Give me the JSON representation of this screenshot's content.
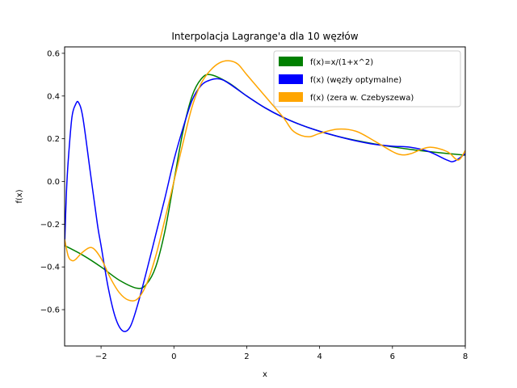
{
  "chart_data": {
    "type": "line",
    "title": "Interpolacja Lagrange'a dla 10 węzłów",
    "xlabel": "x",
    "ylabel": "f(x)",
    "xlim": [
      -3,
      8
    ],
    "ylim": [
      -0.77,
      0.63
    ],
    "x_ticks": [
      -2,
      0,
      2,
      4,
      6,
      8
    ],
    "x_tick_labels": [
      "−2",
      "0",
      "2",
      "4",
      "6",
      "8"
    ],
    "y_ticks": [
      -0.6,
      -0.4,
      -0.2,
      0.0,
      0.2,
      0.4,
      0.6
    ],
    "y_tick_labels": [
      "−0.6",
      "−0.4",
      "−0.2",
      "0.0",
      "0.2",
      "0.4",
      "0.6"
    ],
    "grid": false,
    "legend_position": "top-right",
    "series": [
      {
        "name": "f(x)=x/(1+x^2)",
        "color": "#008000",
        "points": [
          [
            -3,
            -0.3
          ],
          [
            -2.5,
            -0.345
          ],
          [
            -2,
            -0.4
          ],
          [
            -1.5,
            -0.462
          ],
          [
            -1,
            -0.5
          ],
          [
            -0.75,
            -0.48
          ],
          [
            -0.5,
            -0.4
          ],
          [
            -0.25,
            -0.235
          ],
          [
            0,
            0
          ],
          [
            0.25,
            0.235
          ],
          [
            0.5,
            0.4
          ],
          [
            0.75,
            0.48
          ],
          [
            1,
            0.5
          ],
          [
            1.5,
            0.462
          ],
          [
            2,
            0.4
          ],
          [
            2.5,
            0.345
          ],
          [
            3,
            0.3
          ],
          [
            3.5,
            0.264
          ],
          [
            4,
            0.235
          ],
          [
            4.5,
            0.211
          ],
          [
            5,
            0.192
          ],
          [
            5.5,
            0.176
          ],
          [
            6,
            0.162
          ],
          [
            6.5,
            0.15
          ],
          [
            7,
            0.14
          ],
          [
            7.5,
            0.131
          ],
          [
            8,
            0.123
          ]
        ]
      },
      {
        "name": "f(x) (węzły optymalne)",
        "color": "#0000ff",
        "points": [
          [
            -3,
            -0.3
          ],
          [
            -2.95,
            -0.05
          ],
          [
            -2.9,
            0.1
          ],
          [
            -2.8,
            0.3
          ],
          [
            -2.7,
            0.36
          ],
          [
            -2.62,
            0.37
          ],
          [
            -2.5,
            0.3
          ],
          [
            -2.3,
            0.05
          ],
          [
            -2.1,
            -0.2
          ],
          [
            -2,
            -0.3
          ],
          [
            -1.8,
            -0.5
          ],
          [
            -1.6,
            -0.64
          ],
          [
            -1.4,
            -0.7
          ],
          [
            -1.2,
            -0.68
          ],
          [
            -1,
            -0.58
          ],
          [
            -0.75,
            -0.42
          ],
          [
            -0.5,
            -0.25
          ],
          [
            -0.25,
            -0.08
          ],
          [
            0,
            0.1
          ],
          [
            0.25,
            0.25
          ],
          [
            0.5,
            0.38
          ],
          [
            0.75,
            0.45
          ],
          [
            1,
            0.475
          ],
          [
            1.25,
            0.48
          ],
          [
            1.5,
            0.46
          ],
          [
            2,
            0.4
          ],
          [
            2.5,
            0.345
          ],
          [
            3,
            0.3
          ],
          [
            3.5,
            0.264
          ],
          [
            4,
            0.235
          ],
          [
            4.5,
            0.211
          ],
          [
            5,
            0.19
          ],
          [
            5.5,
            0.174
          ],
          [
            6,
            0.165
          ],
          [
            6.5,
            0.16
          ],
          [
            7,
            0.14
          ],
          [
            7.5,
            0.1
          ],
          [
            7.7,
            0.095
          ],
          [
            8,
            0.13
          ]
        ]
      },
      {
        "name": "f(x) (zera w. Czebyszewa)",
        "color": "#ffa500",
        "points": [
          [
            -3,
            -0.27
          ],
          [
            -2.9,
            -0.35
          ],
          [
            -2.8,
            -0.37
          ],
          [
            -2.7,
            -0.365
          ],
          [
            -2.5,
            -0.33
          ],
          [
            -2.25,
            -0.31
          ],
          [
            -2,
            -0.36
          ],
          [
            -1.75,
            -0.45
          ],
          [
            -1.5,
            -0.52
          ],
          [
            -1.25,
            -0.555
          ],
          [
            -1,
            -0.55
          ],
          [
            -0.75,
            -0.48
          ],
          [
            -0.5,
            -0.35
          ],
          [
            -0.25,
            -0.18
          ],
          [
            0,
            0
          ],
          [
            0.25,
            0.18
          ],
          [
            0.5,
            0.35
          ],
          [
            0.75,
            0.46
          ],
          [
            1,
            0.52
          ],
          [
            1.25,
            0.555
          ],
          [
            1.5,
            0.565
          ],
          [
            1.75,
            0.55
          ],
          [
            2,
            0.5
          ],
          [
            2.5,
            0.4
          ],
          [
            3,
            0.3
          ],
          [
            3.25,
            0.24
          ],
          [
            3.5,
            0.215
          ],
          [
            3.75,
            0.21
          ],
          [
            4,
            0.225
          ],
          [
            4.5,
            0.245
          ],
          [
            5,
            0.235
          ],
          [
            5.5,
            0.19
          ],
          [
            6,
            0.14
          ],
          [
            6.25,
            0.125
          ],
          [
            6.5,
            0.13
          ],
          [
            7,
            0.16
          ],
          [
            7.5,
            0.14
          ],
          [
            7.8,
            0.1
          ],
          [
            8,
            0.145
          ]
        ]
      }
    ]
  }
}
